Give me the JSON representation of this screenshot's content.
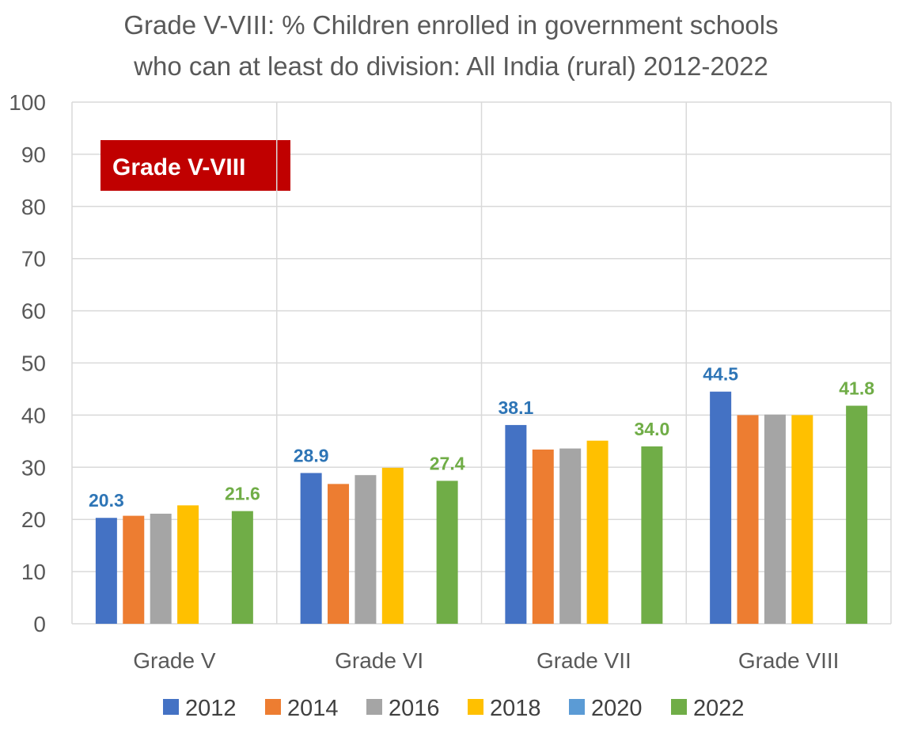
{
  "title_lines": [
    "Grade V-VIII: % Children enrolled in government schools",
    "who can at least do division: All India (rural) 2012-2022"
  ],
  "badge": {
    "text": "Grade V-VIII",
    "color": "#C00000"
  },
  "colors": {
    "2012": "#4472C4",
    "2014": "#ED7D31",
    "2016": "#A5A5A5",
    "2018": "#FFC000",
    "2020": "#5B9BD5",
    "2022": "#70AD47",
    "label_2012": "#2E75B6",
    "label_2022": "#70AD47",
    "grid": "#D9D9D9",
    "axis_text": "#595959"
  },
  "chart_data": {
    "type": "bar",
    "title": "Grade V-VIII: % Children enrolled in government schools who can at least do division: All India (rural) 2012-2022",
    "categories": [
      "Grade V",
      "Grade VI",
      "Grade VII",
      "Grade VIII"
    ],
    "series": [
      {
        "name": "2012",
        "values": [
          20.3,
          28.9,
          38.1,
          44.5
        ],
        "labeled": true
      },
      {
        "name": "2014",
        "values": [
          20.7,
          26.8,
          33.4,
          40.0
        ],
        "labeled": false
      },
      {
        "name": "2016",
        "values": [
          21.1,
          28.5,
          33.6,
          40.1
        ],
        "labeled": false
      },
      {
        "name": "2018",
        "values": [
          22.7,
          29.9,
          35.1,
          40.0
        ],
        "labeled": false
      },
      {
        "name": "2020",
        "values": [
          null,
          null,
          null,
          null
        ],
        "labeled": false
      },
      {
        "name": "2022",
        "values": [
          21.6,
          27.4,
          34.0,
          41.8
        ],
        "labeled": true
      }
    ],
    "data_labels": {
      "2012": [
        "20.3",
        "28.9",
        "38.1",
        "44.5"
      ],
      "2022": [
        "21.6",
        "27.4",
        "34.0",
        "41.8"
      ]
    },
    "ylim": [
      0,
      100
    ],
    "yticks": [
      0,
      10,
      20,
      30,
      40,
      50,
      60,
      70,
      80,
      90,
      100
    ],
    "grid": true,
    "legend": "bottom",
    "xlabel": "",
    "ylabel": ""
  }
}
